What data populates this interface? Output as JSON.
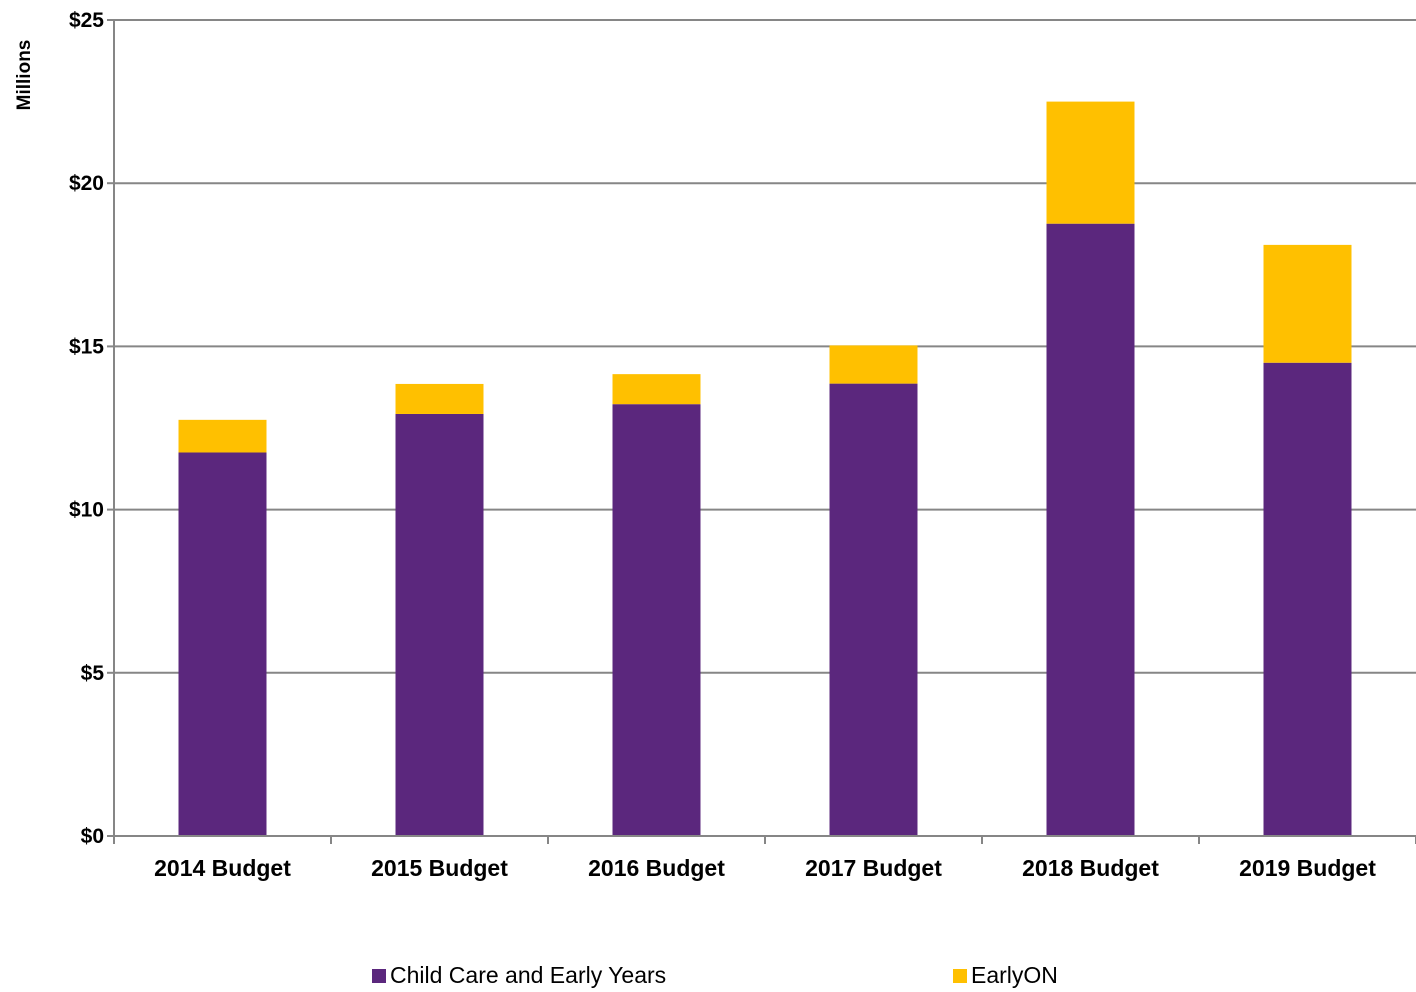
{
  "chart_data": {
    "type": "bar",
    "stacked": true,
    "categories": [
      "2014 Budget",
      "2015 Budget",
      "2016 Budget",
      "2017 Budget",
      "2018 Budget",
      "2019 Budget"
    ],
    "series": [
      {
        "name": "Child Care and Early Years",
        "color": "#5B277D",
        "values": [
          11.75,
          12.93,
          13.23,
          13.86,
          18.76,
          14.5
        ]
      },
      {
        "name": "EarlyON",
        "color": "#FFC000",
        "values": [
          1.0,
          0.92,
          0.92,
          1.17,
          3.74,
          3.61
        ]
      }
    ],
    "ylabel": "Millions",
    "ylim": [
      0,
      25
    ],
    "yticks": [
      0,
      5,
      10,
      15,
      20,
      25
    ],
    "ytick_labels": [
      "$0",
      "$5",
      "$10",
      "$15",
      "$20",
      "$25"
    ],
    "grid": true,
    "legend_position": "bottom"
  }
}
